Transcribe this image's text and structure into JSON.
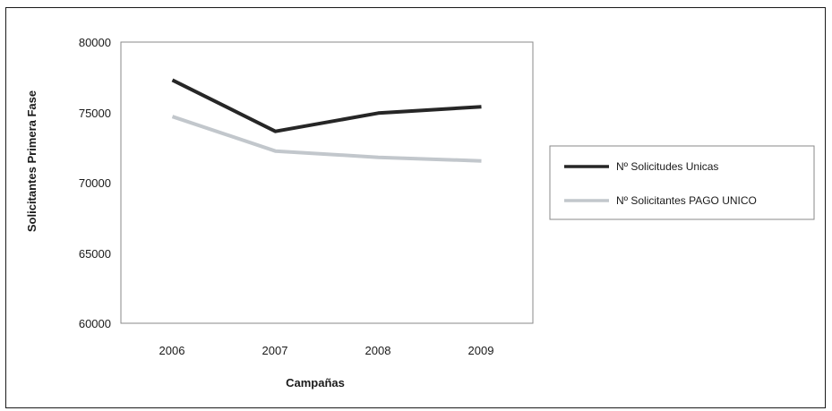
{
  "chart_data": {
    "type": "line",
    "categories": [
      "2006",
      "2007",
      "2008",
      "2009"
    ],
    "series": [
      {
        "name": "Nº Solicitudes Unicas",
        "values": [
          77300,
          73650,
          74950,
          75400
        ],
        "color": "#262626"
      },
      {
        "name": "Nº Solicitantes PAGO UNICO",
        "values": [
          74700,
          72250,
          71800,
          71550
        ],
        "color": "#c2c7cc"
      }
    ],
    "title": "",
    "xlabel": "Campañas",
    "ylabel": "Solicitantes Primera Fase",
    "ylim": [
      60000,
      80000
    ],
    "yticks": [
      "80000",
      "75000",
      "70000",
      "65000",
      "60000"
    ],
    "grid": false,
    "legend_position": "right"
  }
}
